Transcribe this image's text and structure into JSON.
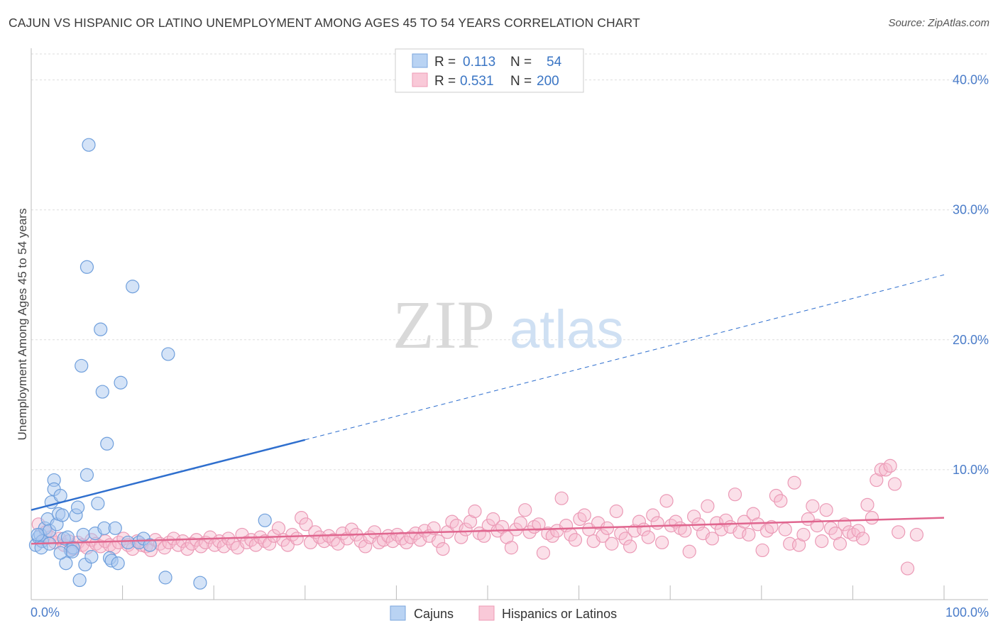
{
  "title": "CAJUN VS HISPANIC OR LATINO UNEMPLOYMENT AMONG AGES 45 TO 54 YEARS CORRELATION CHART",
  "source": "Source: ZipAtlas.com",
  "watermark": {
    "zip": "ZIP",
    "atlas": "atlas"
  },
  "legend": {
    "r_label": "R =",
    "n_label": "N =",
    "entries": [
      {
        "r": "0.113",
        "n": "54",
        "color": "#a9c8f0",
        "stroke": "#6f9fdc"
      },
      {
        "r": "0.531",
        "n": "200",
        "color": "#f7bfd0",
        "stroke": "#e88aa8"
      }
    ]
  },
  "bottom_legend": [
    "Cajuns",
    "Hispanics or Latinos"
  ],
  "chart_data": {
    "type": "scatter",
    "ylabel": "Unemployment Among Ages 45 to 54 years",
    "xlabel": "",
    "xlim": [
      0,
      100
    ],
    "ylim": [
      0,
      42
    ],
    "x_tick_labels": [
      "0.0%",
      "100.0%"
    ],
    "y_ticks": [
      10,
      20,
      30,
      40
    ],
    "y_tick_labels": [
      "10.0%",
      "20.0%",
      "30.0%",
      "40.0%"
    ],
    "grid": true,
    "colors": {
      "cajuns": "#6f9fdc",
      "hispanics": "#e88aa8",
      "cajun_line": "#2f6fce",
      "hisp_line": "#e0668f"
    },
    "series": [
      {
        "name": "Cajuns",
        "points": [
          [
            0.5,
            4.2
          ],
          [
            0.8,
            4.8
          ],
          [
            1.0,
            5.0
          ],
          [
            1.2,
            4.5
          ],
          [
            1.5,
            5.5
          ],
          [
            1.8,
            6.2
          ],
          [
            2.0,
            5.3
          ],
          [
            2.2,
            7.5
          ],
          [
            2.5,
            9.2
          ],
          [
            2.5,
            8.5
          ],
          [
            2.8,
            5.8
          ],
          [
            3.0,
            6.6
          ],
          [
            3.2,
            8.0
          ],
          [
            3.4,
            6.5
          ],
          [
            3.6,
            4.7
          ],
          [
            3.8,
            2.8
          ],
          [
            4.0,
            4.8
          ],
          [
            4.3,
            3.8
          ],
          [
            4.6,
            4.0
          ],
          [
            4.9,
            6.5
          ],
          [
            5.1,
            7.1
          ],
          [
            5.3,
            1.5
          ],
          [
            5.5,
            18.0
          ],
          [
            5.7,
            5.0
          ],
          [
            5.9,
            2.7
          ],
          [
            6.1,
            25.6
          ],
          [
            6.1,
            9.6
          ],
          [
            6.3,
            35.0
          ],
          [
            6.6,
            3.3
          ],
          [
            7.0,
            5.1
          ],
          [
            7.3,
            7.4
          ],
          [
            7.6,
            20.8
          ],
          [
            7.8,
            16.0
          ],
          [
            8.0,
            5.5
          ],
          [
            8.3,
            12.0
          ],
          [
            8.6,
            3.2
          ],
          [
            8.8,
            3.0
          ],
          [
            9.2,
            5.5
          ],
          [
            9.5,
            2.8
          ],
          [
            9.8,
            16.7
          ],
          [
            10.6,
            4.4
          ],
          [
            11.1,
            24.1
          ],
          [
            11.8,
            4.4
          ],
          [
            12.3,
            4.7
          ],
          [
            14.7,
            1.7
          ],
          [
            15.0,
            18.9
          ],
          [
            18.5,
            1.3
          ],
          [
            1.1,
            4.0
          ],
          [
            0.7,
            5.0
          ],
          [
            2.0,
            4.3
          ],
          [
            4.5,
            3.7
          ],
          [
            3.2,
            3.6
          ],
          [
            25.6,
            6.1
          ],
          [
            13.0,
            4.2
          ]
        ]
      },
      {
        "name": "Hispanics or Latinos",
        "points": [
          [
            0.8,
            5.8
          ],
          [
            1.2,
            4.5
          ],
          [
            1.6,
            5.2
          ],
          [
            2.1,
            4.8
          ],
          [
            2.6,
            4.4
          ],
          [
            3.1,
            4.7
          ],
          [
            3.6,
            4.2
          ],
          [
            4.1,
            4.5
          ],
          [
            4.6,
            3.9
          ],
          [
            5.1,
            4.4
          ],
          [
            5.6,
            4.2
          ],
          [
            6.1,
            4.0
          ],
          [
            6.6,
            4.6
          ],
          [
            7.1,
            4.3
          ],
          [
            7.6,
            4.1
          ],
          [
            8.1,
            4.5
          ],
          [
            8.6,
            4.2
          ],
          [
            9.1,
            4.0
          ],
          [
            9.6,
            4.4
          ],
          [
            10.1,
            4.7
          ],
          [
            10.6,
            4.2
          ],
          [
            11.1,
            3.9
          ],
          [
            11.6,
            4.5
          ],
          [
            12.1,
            4.2
          ],
          [
            12.6,
            4.1
          ],
          [
            13.1,
            3.8
          ],
          [
            13.6,
            4.6
          ],
          [
            14.1,
            4.3
          ],
          [
            14.6,
            4.0
          ],
          [
            15.1,
            4.4
          ],
          [
            15.6,
            4.7
          ],
          [
            16.1,
            4.2
          ],
          [
            16.6,
            4.5
          ],
          [
            17.1,
            3.9
          ],
          [
            17.6,
            4.3
          ],
          [
            18.1,
            4.6
          ],
          [
            18.6,
            4.1
          ],
          [
            19.1,
            4.4
          ],
          [
            19.6,
            4.8
          ],
          [
            20.1,
            4.2
          ],
          [
            20.6,
            4.5
          ],
          [
            21.1,
            4.1
          ],
          [
            21.6,
            4.7
          ],
          [
            22.1,
            4.3
          ],
          [
            22.6,
            4.0
          ],
          [
            23.1,
            5.0
          ],
          [
            23.6,
            4.4
          ],
          [
            24.1,
            4.6
          ],
          [
            24.6,
            4.2
          ],
          [
            25.1,
            4.8
          ],
          [
            25.6,
            4.5
          ],
          [
            26.1,
            4.3
          ],
          [
            26.6,
            4.9
          ],
          [
            27.1,
            5.5
          ],
          [
            27.6,
            4.6
          ],
          [
            28.1,
            4.2
          ],
          [
            28.6,
            5.0
          ],
          [
            29.1,
            4.7
          ],
          [
            29.6,
            6.3
          ],
          [
            30.1,
            5.8
          ],
          [
            30.6,
            4.4
          ],
          [
            31.1,
            5.2
          ],
          [
            31.6,
            4.8
          ],
          [
            32.1,
            4.5
          ],
          [
            32.6,
            4.9
          ],
          [
            33.1,
            4.6
          ],
          [
            33.6,
            4.3
          ],
          [
            34.1,
            5.1
          ],
          [
            34.6,
            4.7
          ],
          [
            35.1,
            5.4
          ],
          [
            35.6,
            5.0
          ],
          [
            36.1,
            4.5
          ],
          [
            36.6,
            4.1
          ],
          [
            37.1,
            4.8
          ],
          [
            37.6,
            5.2
          ],
          [
            38.1,
            4.4
          ],
          [
            38.6,
            4.6
          ],
          [
            39.1,
            4.9
          ],
          [
            39.6,
            4.5
          ],
          [
            40.1,
            5.0
          ],
          [
            40.6,
            4.7
          ],
          [
            41.1,
            4.4
          ],
          [
            41.6,
            4.8
          ],
          [
            42.1,
            5.1
          ],
          [
            42.6,
            4.6
          ],
          [
            43.1,
            5.3
          ],
          [
            43.6,
            4.9
          ],
          [
            44.1,
            5.5
          ],
          [
            44.6,
            4.5
          ],
          [
            45.1,
            3.9
          ],
          [
            45.6,
            5.2
          ],
          [
            46.1,
            6.0
          ],
          [
            46.6,
            5.7
          ],
          [
            47.1,
            4.8
          ],
          [
            47.6,
            5.4
          ],
          [
            48.1,
            6.0
          ],
          [
            48.6,
            6.8
          ],
          [
            49.1,
            5.1
          ],
          [
            49.6,
            4.9
          ],
          [
            50.1,
            5.7
          ],
          [
            50.6,
            6.2
          ],
          [
            51.1,
            5.3
          ],
          [
            51.6,
            5.6
          ],
          [
            52.1,
            4.8
          ],
          [
            52.6,
            4.0
          ],
          [
            53.1,
            5.4
          ],
          [
            53.6,
            5.9
          ],
          [
            54.1,
            6.9
          ],
          [
            54.6,
            5.2
          ],
          [
            55.1,
            5.6
          ],
          [
            55.6,
            5.8
          ],
          [
            56.1,
            3.6
          ],
          [
            56.6,
            5.1
          ],
          [
            57.1,
            4.9
          ],
          [
            57.6,
            5.3
          ],
          [
            58.1,
            7.8
          ],
          [
            58.6,
            5.7
          ],
          [
            59.1,
            5.0
          ],
          [
            59.6,
            4.6
          ],
          [
            60.1,
            6.2
          ],
          [
            60.6,
            6.5
          ],
          [
            61.1,
            5.4
          ],
          [
            61.6,
            4.5
          ],
          [
            62.1,
            5.9
          ],
          [
            62.6,
            4.9
          ],
          [
            63.1,
            5.5
          ],
          [
            63.6,
            4.3
          ],
          [
            64.1,
            6.8
          ],
          [
            64.6,
            5.1
          ],
          [
            65.1,
            4.7
          ],
          [
            65.6,
            4.1
          ],
          [
            66.1,
            5.3
          ],
          [
            66.6,
            6.0
          ],
          [
            67.1,
            5.4
          ],
          [
            67.6,
            4.8
          ],
          [
            68.1,
            6.5
          ],
          [
            68.6,
            5.9
          ],
          [
            69.1,
            4.4
          ],
          [
            69.6,
            7.6
          ],
          [
            70.1,
            5.7
          ],
          [
            70.6,
            6.0
          ],
          [
            71.1,
            5.5
          ],
          [
            71.6,
            5.3
          ],
          [
            72.1,
            3.7
          ],
          [
            72.6,
            6.4
          ],
          [
            73.1,
            5.8
          ],
          [
            73.6,
            5.1
          ],
          [
            74.1,
            7.2
          ],
          [
            74.6,
            4.7
          ],
          [
            75.1,
            5.9
          ],
          [
            75.6,
            5.4
          ],
          [
            76.1,
            6.1
          ],
          [
            76.6,
            5.6
          ],
          [
            77.1,
            8.1
          ],
          [
            77.6,
            5.2
          ],
          [
            78.1,
            6.0
          ],
          [
            78.6,
            5.0
          ],
          [
            79.1,
            6.6
          ],
          [
            79.6,
            5.8
          ],
          [
            80.1,
            3.8
          ],
          [
            80.6,
            5.3
          ],
          [
            81.1,
            5.6
          ],
          [
            81.6,
            8.0
          ],
          [
            82.1,
            7.6
          ],
          [
            82.6,
            5.4
          ],
          [
            83.1,
            4.3
          ],
          [
            83.6,
            9.0
          ],
          [
            84.1,
            4.2
          ],
          [
            84.6,
            5.0
          ],
          [
            85.1,
            6.2
          ],
          [
            85.6,
            7.2
          ],
          [
            86.1,
            5.7
          ],
          [
            86.6,
            4.5
          ],
          [
            87.1,
            6.9
          ],
          [
            87.6,
            5.5
          ],
          [
            88.1,
            5.1
          ],
          [
            88.6,
            4.3
          ],
          [
            89.1,
            5.8
          ],
          [
            89.6,
            5.2
          ],
          [
            90.1,
            5.0
          ],
          [
            90.6,
            5.3
          ],
          [
            91.1,
            4.7
          ],
          [
            91.6,
            7.3
          ],
          [
            92.1,
            6.3
          ],
          [
            92.6,
            9.2
          ],
          [
            93.1,
            10.0
          ],
          [
            93.6,
            10.0
          ],
          [
            94.1,
            10.3
          ],
          [
            94.6,
            8.9
          ],
          [
            95.0,
            5.2
          ],
          [
            96.0,
            2.4
          ],
          [
            97.0,
            5.0
          ]
        ]
      }
    ],
    "trend_lines": [
      {
        "series": "Cajuns",
        "x0": 0,
        "y0": 6.9,
        "x_solid_end": 30,
        "y_solid_end": 12.3,
        "x1": 100,
        "y1": 25.0
      },
      {
        "series": "Hispanics or Latinos",
        "x0": 0,
        "y0": 4.3,
        "x1": 100,
        "y1": 6.3
      }
    ]
  }
}
